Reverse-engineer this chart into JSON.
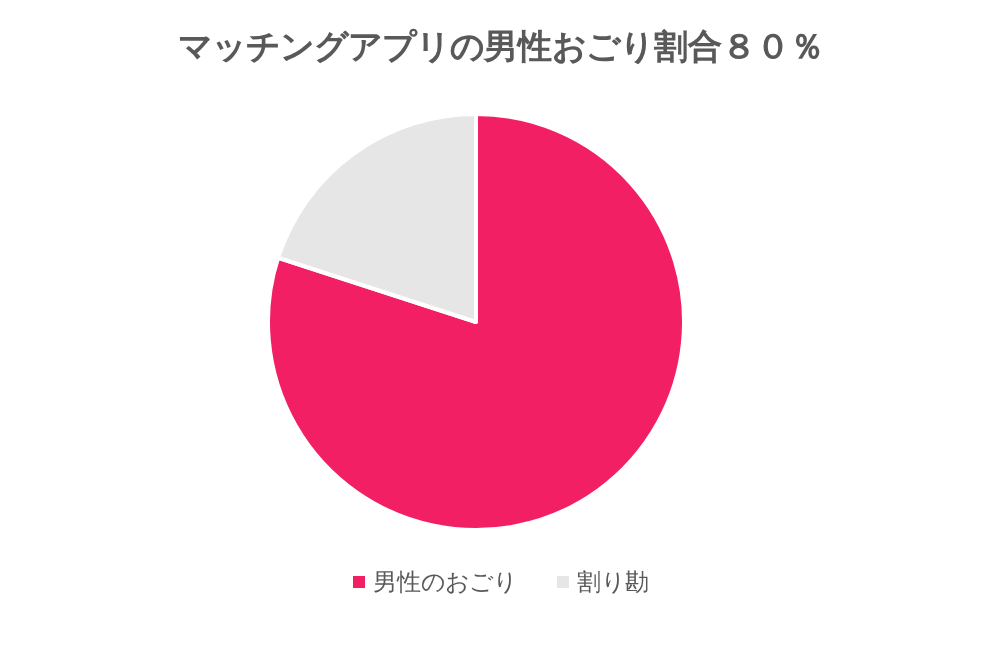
{
  "chart_data": {
    "type": "pie",
    "title": "マッチングアプリの男性おごり割合８０％",
    "categories": [
      "男性のおごり",
      "割り勘"
    ],
    "values": [
      80,
      20
    ],
    "colors": [
      "#f21f64",
      "#e6e6e6"
    ],
    "legend": "bottom"
  }
}
